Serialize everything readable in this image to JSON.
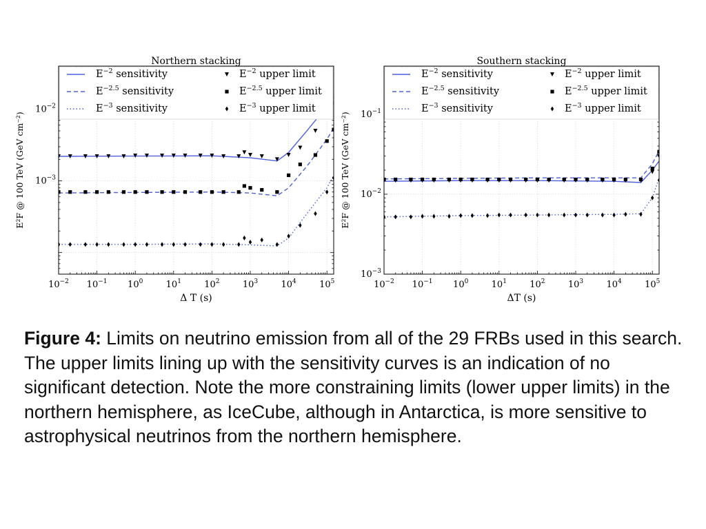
{
  "caption": {
    "label": "Figure 4:",
    "text": " Limits on neutrino emission from all of the 29 FRBs used in this search. The upper limits lining up with the sensitivity curves is an indication of no significant detection. Note the more constraining limits (lower upper limits) in the northern hemisphere, as IceCube, although in Antarctica, is more sensitive to astrophysical neutrinos from the northern hemisphere."
  },
  "colors": {
    "sensitivity": "#4a5ee0",
    "upper_limit": "#000000"
  },
  "chart_data": [
    {
      "type": "line",
      "title": "Northern stacking",
      "xlabel": "Δ T (s)",
      "ylabel": "E²F @ 100 TeV (GeV cm⁻²)",
      "xscale": "log",
      "yscale": "log",
      "xlim": [
        0.01,
        150000
      ],
      "ylim": [
        5e-05,
        0.04
      ],
      "xticks": [
        {
          "base": "10",
          "exp": "−2"
        },
        {
          "base": "10",
          "exp": "−1"
        },
        {
          "base": "10",
          "exp": "0"
        },
        {
          "base": "10",
          "exp": "1"
        },
        {
          "base": "10",
          "exp": "2"
        },
        {
          "base": "10",
          "exp": "3"
        },
        {
          "base": "10",
          "exp": "4"
        },
        {
          "base": "10",
          "exp": "5"
        }
      ],
      "yticks": [
        {
          "value": 0.001,
          "base": "10",
          "exp": "−3"
        },
        {
          "value": 0.01,
          "base": "10",
          "exp": "−2"
        }
      ],
      "grid": true,
      "legend_placement": "top",
      "legend": [
        {
          "label": "E",
          "sup": "−2",
          "rest": " sensitivity",
          "style": "solid"
        },
        {
          "label": "E",
          "sup": "−2.5",
          "rest": " sensitivity",
          "style": "dashed"
        },
        {
          "label": "E",
          "sup": "−3",
          "rest": " sensitivity",
          "style": "dotted"
        },
        {
          "label": "E",
          "sup": "−2",
          "rest": " upper limit",
          "marker": "triangle"
        },
        {
          "label": "E",
          "sup": "−2.5",
          "rest": " upper limit",
          "marker": "square"
        },
        {
          "label": "E",
          "sup": "−3",
          "rest": " upper limit",
          "marker": "diamond"
        }
      ],
      "series": [
        {
          "kind": "sensitivity",
          "style": "solid",
          "x": [
            0.01,
            1,
            100,
            1000,
            5000,
            10000,
            30000,
            100000,
            150000
          ],
          "y": [
            0.0022,
            0.00222,
            0.00224,
            0.0021,
            0.0019,
            0.0025,
            0.005,
            0.011,
            0.015
          ]
        },
        {
          "kind": "sensitivity",
          "style": "dashed",
          "x": [
            0.01,
            1,
            100,
            1000,
            5000,
            10000,
            30000,
            100000,
            150000
          ],
          "y": [
            0.00068,
            0.00069,
            0.0007,
            0.00068,
            0.00062,
            0.0008,
            0.0016,
            0.0038,
            0.0055
          ]
        },
        {
          "kind": "sensitivity",
          "style": "dotted",
          "x": [
            0.01,
            1,
            100,
            1000,
            5000,
            10000,
            30000,
            100000,
            150000
          ],
          "y": [
            0.00013,
            0.00013,
            0.000132,
            0.000128,
            0.000124,
            0.00016,
            0.00035,
            0.0008,
            0.0012
          ]
        },
        {
          "kind": "upper_limit",
          "marker": "triangle",
          "x": [
            0.01,
            0.02,
            0.05,
            0.1,
            0.2,
            0.5,
            1,
            2,
            5,
            10,
            20,
            50,
            100,
            200,
            500,
            700,
            1000,
            2000,
            5000,
            10000,
            20000,
            50000,
            100000,
            150000
          ],
          "y": [
            0.0022,
            0.0022,
            0.0022,
            0.0022,
            0.0022,
            0.0022,
            0.00225,
            0.00225,
            0.00225,
            0.00225,
            0.00225,
            0.00225,
            0.00225,
            0.0022,
            0.0022,
            0.0025,
            0.0023,
            0.0022,
            0.002,
            0.0023,
            0.0029,
            0.005,
            0.0095,
            0.012
          ]
        },
        {
          "kind": "upper_limit",
          "marker": "square",
          "x": [
            0.01,
            0.02,
            0.05,
            0.1,
            0.2,
            0.5,
            1,
            2,
            5,
            10,
            20,
            50,
            100,
            200,
            500,
            700,
            1000,
            2000,
            5000,
            10000,
            20000,
            50000,
            100000,
            150000
          ],
          "y": [
            0.0007,
            0.0007,
            0.0007,
            0.0007,
            0.0007,
            0.0007,
            0.0007,
            0.0007,
            0.0007,
            0.0007,
            0.0007,
            0.0007,
            0.0007,
            0.0007,
            0.0007,
            0.00085,
            0.0008,
            0.00075,
            0.0007,
            0.0012,
            0.0017,
            0.0023,
            0.0036,
            0.0052
          ]
        },
        {
          "kind": "upper_limit",
          "marker": "diamond",
          "x": [
            0.01,
            0.02,
            0.05,
            0.1,
            0.2,
            0.5,
            1,
            2,
            5,
            10,
            20,
            50,
            100,
            200,
            500,
            700,
            1000,
            2000,
            5000,
            10000,
            20000,
            50000,
            100000,
            150000
          ],
          "y": [
            0.00013,
            0.00013,
            0.00013,
            0.00013,
            0.00013,
            0.00013,
            0.00013,
            0.00013,
            0.00013,
            0.00013,
            0.00013,
            0.00013,
            0.00013,
            0.00013,
            0.00013,
            0.00016,
            0.00014,
            0.00015,
            0.00013,
            0.00017,
            0.00024,
            0.00035,
            0.0007,
            0.0011
          ]
        }
      ]
    },
    {
      "type": "line",
      "title": "Southern stacking",
      "xlabel": "ΔT (s)",
      "ylabel": "E²F @ 100 TeV (GeV cm⁻²)",
      "xscale": "log",
      "yscale": "log",
      "xlim": [
        0.01,
        150000
      ],
      "ylim": [
        0.001,
        0.4
      ],
      "xticks": [
        {
          "base": "10",
          "exp": "−2"
        },
        {
          "base": "10",
          "exp": "−1"
        },
        {
          "base": "10",
          "exp": "0"
        },
        {
          "base": "10",
          "exp": "1"
        },
        {
          "base": "10",
          "exp": "2"
        },
        {
          "base": "10",
          "exp": "3"
        },
        {
          "base": "10",
          "exp": "4"
        },
        {
          "base": "10",
          "exp": "5"
        }
      ],
      "yticks": [
        {
          "value": 0.001,
          "base": "10",
          "exp": "−3"
        },
        {
          "value": 0.01,
          "base": "10",
          "exp": "−2"
        },
        {
          "value": 0.1,
          "base": "10",
          "exp": "−1"
        }
      ],
      "grid": true,
      "legend_placement": "top",
      "legend": [
        {
          "label": "E",
          "sup": "−2",
          "rest": " sensitivity",
          "style": "solid"
        },
        {
          "label": "E",
          "sup": "−2.5",
          "rest": " sensitivity",
          "style": "dashed"
        },
        {
          "label": "E",
          "sup": "−3",
          "rest": " sensitivity",
          "style": "dotted"
        },
        {
          "label": "E",
          "sup": "−2",
          "rest": " upper limit",
          "marker": "triangle"
        },
        {
          "label": "E",
          "sup": "−2.5",
          "rest": " upper limit",
          "marker": "square"
        },
        {
          "label": "E",
          "sup": "−3",
          "rest": " upper limit",
          "marker": "diamond"
        }
      ],
      "series": [
        {
          "kind": "sensitivity",
          "style": "solid",
          "x": [
            0.01,
            1,
            100,
            10000,
            50000,
            100000,
            150000
          ],
          "y": [
            0.0145,
            0.0148,
            0.0148,
            0.0145,
            0.014,
            0.02,
            0.026
          ]
        },
        {
          "kind": "sensitivity",
          "style": "dashed",
          "x": [
            0.01,
            1,
            100,
            10000,
            50000,
            100000,
            150000
          ],
          "y": [
            0.0155,
            0.0158,
            0.016,
            0.016,
            0.016,
            0.024,
            0.035
          ]
        },
        {
          "kind": "sensitivity",
          "style": "dotted",
          "x": [
            0.01,
            1,
            100,
            10000,
            50000,
            100000,
            150000
          ],
          "y": [
            0.0052,
            0.0054,
            0.0055,
            0.0056,
            0.0057,
            0.009,
            0.016
          ]
        },
        {
          "kind": "upper_limit",
          "marker": "triangle",
          "x": [
            0.01,
            0.02,
            0.05,
            0.1,
            0.2,
            0.5,
            1,
            2,
            5,
            10,
            20,
            50,
            100,
            200,
            500,
            1000,
            2000,
            5000,
            10000,
            20000,
            50000,
            100000,
            150000
          ],
          "y": [
            0.0148,
            0.0148,
            0.0148,
            0.0148,
            0.0148,
            0.0148,
            0.0148,
            0.0148,
            0.0148,
            0.0148,
            0.0148,
            0.0148,
            0.0148,
            0.0148,
            0.0148,
            0.0148,
            0.0148,
            0.0148,
            0.0148,
            0.0148,
            0.0148,
            0.019,
            0.03
          ]
        },
        {
          "kind": "upper_limit",
          "marker": "square",
          "x": [
            0.01,
            0.02,
            0.05,
            0.1,
            0.2,
            0.5,
            1,
            2,
            5,
            10,
            20,
            50,
            100,
            200,
            500,
            1000,
            2000,
            5000,
            10000,
            20000,
            50000,
            100000,
            150000
          ],
          "y": [
            0.0153,
            0.0153,
            0.0153,
            0.0153,
            0.0153,
            0.0153,
            0.0153,
            0.0153,
            0.0153,
            0.0153,
            0.0153,
            0.0153,
            0.0153,
            0.0153,
            0.0153,
            0.0153,
            0.0153,
            0.0153,
            0.0153,
            0.0153,
            0.0153,
            0.021,
            0.034
          ]
        },
        {
          "kind": "upper_limit",
          "marker": "diamond",
          "x": [
            0.01,
            0.02,
            0.05,
            0.1,
            0.2,
            0.5,
            1,
            2,
            5,
            10,
            20,
            50,
            100,
            200,
            500,
            1000,
            2000,
            5000,
            10000,
            20000,
            50000,
            100000,
            150000
          ],
          "y": [
            0.0052,
            0.0052,
            0.0052,
            0.0053,
            0.0053,
            0.0053,
            0.0054,
            0.0054,
            0.0054,
            0.0055,
            0.0055,
            0.0055,
            0.0055,
            0.0055,
            0.0055,
            0.0055,
            0.0055,
            0.0055,
            0.0055,
            0.0056,
            0.0056,
            0.009,
            0.015
          ]
        }
      ]
    }
  ]
}
